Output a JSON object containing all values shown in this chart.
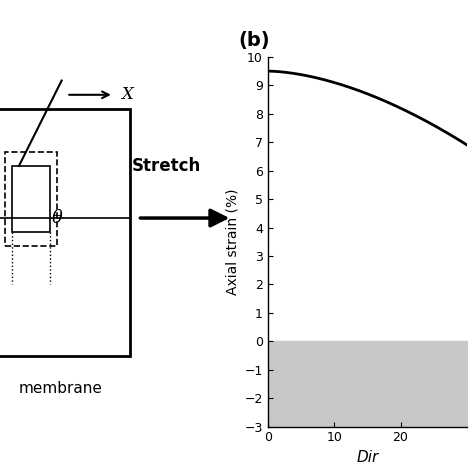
{
  "fig_width": 4.74,
  "fig_height": 4.74,
  "dpi": 100,
  "bg_color": "#ffffff",
  "panel_b_label": "(b)",
  "panel_b_label_fontsize": 14,
  "ylabel": "Axial strain (%)",
  "xlabel": "Dir",
  "ylabel_fontsize": 10,
  "xlabel_fontsize": 11,
  "yticks": [
    -3,
    -2,
    -1,
    0,
    1,
    2,
    3,
    4,
    5,
    6,
    7,
    8,
    9,
    10
  ],
  "xticks": [
    0,
    10,
    20
  ],
  "ylim": [
    -3,
    10
  ],
  "xlim": [
    0,
    30
  ],
  "curve_color": "#000000",
  "curve_lw": 2.0,
  "shaded_color": "#c8c8c8",
  "shaded_ymin": -3,
  "shaded_ymax": 0,
  "x_arrow_label": "X",
  "stretch_label": "Stretch",
  "membrane_label": "membrane",
  "theta_label": "θ",
  "line_color": "#000000"
}
